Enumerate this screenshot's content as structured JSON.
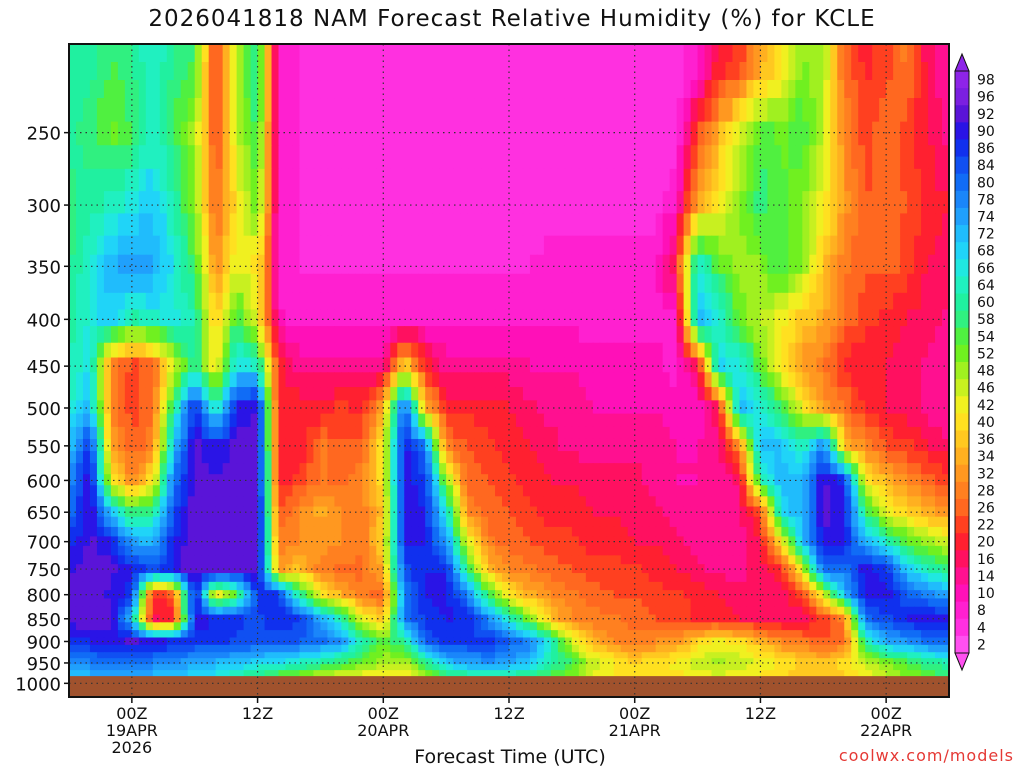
{
  "chart_data": {
    "type": "heatmap",
    "title": "2026041818 NAM Forecast Relative Humidity (%) for KCLE",
    "xlabel": "Forecast Time (UTC)",
    "credit": "coolwx.com/models",
    "x_ticks": [
      {
        "line1": "00Z",
        "line2": "19APR",
        "line3": "2026",
        "hours": 6
      },
      {
        "line1": "12Z",
        "line2": "",
        "line3": "",
        "hours": 18
      },
      {
        "line1": "00Z",
        "line2": "20APR",
        "line3": "",
        "hours": 30
      },
      {
        "line1": "12Z",
        "line2": "",
        "line3": "",
        "hours": 42
      },
      {
        "line1": "00Z",
        "line2": "21APR",
        "line3": "",
        "hours": 54
      },
      {
        "line1": "12Z",
        "line2": "",
        "line3": "",
        "hours": 66
      },
      {
        "line1": "00Z",
        "line2": "22APR",
        "line3": "",
        "hours": 78
      }
    ],
    "xlim_hours": [
      0,
      84
    ],
    "y_ticks": [
      "250",
      "300",
      "350",
      "400",
      "450",
      "500",
      "550",
      "600",
      "650",
      "700",
      "750",
      "800",
      "850",
      "900",
      "950",
      "1000"
    ],
    "ylim_hPa": [
      200,
      1035
    ],
    "y_scale": "log",
    "ground_hPa": 982,
    "grid": true,
    "colorbar": {
      "labels": [
        "98",
        "96",
        "92",
        "90",
        "86",
        "84",
        "80",
        "78",
        "74",
        "72",
        "68",
        "66",
        "64",
        "60",
        "58",
        "54",
        "52",
        "48",
        "46",
        "42",
        "40",
        "36",
        "34",
        "32",
        "28",
        "26",
        "22",
        "20",
        "16",
        "14",
        "10",
        "8",
        "4",
        "2"
      ],
      "colors": [
        "#8e24e8",
        "#7b1fe0",
        "#5a14d8",
        "#2a14e6",
        "#1030ee",
        "#1050f2",
        "#106cf6",
        "#1a86fa",
        "#20a0fc",
        "#20bcfc",
        "#20d4f8",
        "#20e8e0",
        "#20f0c0",
        "#20f0a0",
        "#30f080",
        "#50f040",
        "#70f020",
        "#a0f020",
        "#c8f020",
        "#f0f020",
        "#ffe020",
        "#ffc820",
        "#ffb020",
        "#ff9820",
        "#ff8020",
        "#ff6820",
        "#ff4020",
        "#ff2030",
        "#ff1060",
        "#ff1090",
        "#ff10b8",
        "#ff20d0",
        "#ff30e0",
        "#ff50f0"
      ]
    },
    "rows": [
      {
        "p": 210,
        "rh": [
          62,
          60,
          56,
          58,
          66,
          58,
          56,
          20,
          48,
          60,
          8,
          6,
          4,
          4,
          4,
          4,
          4,
          4,
          4,
          4,
          4,
          4,
          4,
          4,
          4,
          4,
          4,
          4,
          4,
          4,
          8,
          18,
          22,
          32,
          40,
          50,
          48,
          26,
          20,
          22,
          28,
          16,
          12
        ]
      },
      {
        "p": 250,
        "rh": [
          60,
          58,
          52,
          56,
          64,
          56,
          48,
          22,
          46,
          58,
          8,
          6,
          4,
          4,
          4,
          4,
          4,
          4,
          4,
          4,
          4,
          4,
          4,
          4,
          4,
          4,
          4,
          4,
          4,
          4,
          22,
          34,
          44,
          54,
          52,
          56,
          46,
          30,
          22,
          28,
          22,
          18,
          14
        ]
      },
      {
        "p": 300,
        "rh": [
          58,
          60,
          64,
          66,
          70,
          62,
          50,
          26,
          40,
          52,
          8,
          6,
          4,
          4,
          4,
          4,
          4,
          4,
          4,
          4,
          4,
          4,
          4,
          4,
          4,
          4,
          4,
          4,
          4,
          10,
          34,
          42,
          50,
          58,
          54,
          50,
          42,
          32,
          24,
          26,
          24,
          20,
          18
        ]
      },
      {
        "p": 350,
        "rh": [
          58,
          66,
          72,
          76,
          74,
          66,
          56,
          30,
          44,
          40,
          8,
          6,
          6,
          6,
          6,
          6,
          6,
          6,
          6,
          6,
          6,
          6,
          6,
          8,
          8,
          8,
          8,
          8,
          8,
          20,
          66,
          54,
          48,
          50,
          56,
          50,
          36,
          28,
          24,
          26,
          22,
          18,
          16
        ]
      },
      {
        "p": 400,
        "rh": [
          60,
          66,
          70,
          60,
          64,
          66,
          62,
          36,
          56,
          42,
          10,
          8,
          8,
          8,
          8,
          8,
          8,
          8,
          8,
          8,
          8,
          8,
          8,
          8,
          8,
          8,
          8,
          8,
          8,
          8,
          72,
          66,
          52,
          46,
          42,
          36,
          34,
          26,
          22,
          20,
          18,
          16,
          14
        ]
      },
      {
        "p": 450,
        "rh": [
          62,
          68,
          28,
          22,
          26,
          44,
          60,
          40,
          68,
          64,
          20,
          14,
          14,
          14,
          14,
          12,
          40,
          20,
          14,
          14,
          14,
          14,
          12,
          12,
          12,
          10,
          10,
          10,
          10,
          8,
          16,
          68,
          66,
          54,
          40,
          32,
          28,
          20,
          18,
          18,
          16,
          14,
          12
        ]
      },
      {
        "p": 500,
        "rh": [
          64,
          72,
          30,
          22,
          26,
          60,
          88,
          62,
          88,
          92,
          18,
          20,
          18,
          22,
          20,
          34,
          84,
          36,
          20,
          20,
          20,
          18,
          16,
          14,
          14,
          12,
          12,
          12,
          12,
          10,
          10,
          18,
          72,
          66,
          56,
          42,
          32,
          28,
          20,
          18,
          16,
          14,
          12
        ]
      },
      {
        "p": 550,
        "rh": [
          70,
          88,
          34,
          24,
          30,
          70,
          92,
          88,
          92,
          94,
          18,
          18,
          28,
          24,
          26,
          42,
          90,
          78,
          28,
          24,
          22,
          20,
          18,
          16,
          14,
          14,
          14,
          14,
          14,
          12,
          12,
          14,
          30,
          72,
          70,
          62,
          78,
          36,
          30,
          24,
          22,
          18,
          16
        ]
      },
      {
        "p": 600,
        "rh": [
          76,
          92,
          42,
          30,
          40,
          80,
          92,
          92,
          92,
          94,
          20,
          22,
          28,
          26,
          30,
          40,
          90,
          86,
          50,
          26,
          24,
          22,
          20,
          18,
          18,
          16,
          16,
          16,
          14,
          12,
          12,
          12,
          16,
          60,
          72,
          70,
          92,
          86,
          42,
          34,
          30,
          26,
          22
        ]
      },
      {
        "p": 650,
        "rh": [
          80,
          92,
          70,
          56,
          60,
          84,
          94,
          92,
          92,
          94,
          24,
          30,
          34,
          30,
          28,
          36,
          90,
          88,
          66,
          30,
          26,
          24,
          22,
          20,
          20,
          18,
          18,
          16,
          16,
          14,
          12,
          12,
          14,
          22,
          68,
          72,
          92,
          90,
          58,
          44,
          38,
          34,
          30
        ]
      },
      {
        "p": 700,
        "rh": [
          86,
          92,
          88,
          74,
          72,
          88,
          94,
          92,
          92,
          94,
          28,
          30,
          32,
          30,
          28,
          40,
          88,
          88,
          76,
          44,
          28,
          26,
          24,
          22,
          22,
          20,
          20,
          18,
          18,
          16,
          14,
          12,
          14,
          18,
          40,
          70,
          90,
          88,
          72,
          64,
          54,
          48,
          44
        ]
      },
      {
        "p": 750,
        "rh": [
          90,
          94,
          92,
          88,
          84,
          88,
          94,
          94,
          92,
          94,
          32,
          36,
          28,
          26,
          26,
          34,
          84,
          88,
          88,
          58,
          36,
          30,
          28,
          26,
          24,
          22,
          22,
          22,
          20,
          18,
          16,
          14,
          14,
          16,
          20,
          44,
          82,
          80,
          90,
          86,
          70,
          62,
          58
        ]
      },
      {
        "p": 800,
        "rh": [
          92,
          94,
          90,
          86,
          20,
          24,
          92,
          40,
          54,
          86,
          86,
          60,
          42,
          34,
          28,
          24,
          78,
          88,
          90,
          78,
          56,
          40,
          34,
          30,
          28,
          26,
          24,
          24,
          22,
          22,
          20,
          18,
          16,
          16,
          16,
          22,
          44,
          70,
          90,
          90,
          82,
          78,
          74
        ]
      },
      {
        "p": 850,
        "rh": [
          92,
          94,
          92,
          70,
          16,
          20,
          90,
          88,
          86,
          84,
          88,
          86,
          74,
          62,
          44,
          36,
          78,
          86,
          88,
          88,
          78,
          64,
          50,
          36,
          30,
          28,
          28,
          26,
          24,
          22,
          20,
          20,
          18,
          18,
          16,
          16,
          22,
          28,
          80,
          84,
          88,
          90,
          88
        ]
      },
      {
        "p": 900,
        "rh": [
          86,
          88,
          90,
          92,
          90,
          88,
          86,
          86,
          84,
          84,
          82,
          82,
          80,
          76,
          62,
          52,
          60,
          82,
          86,
          86,
          86,
          82,
          78,
          64,
          44,
          34,
          30,
          28,
          30,
          32,
          38,
          42,
          40,
          34,
          30,
          28,
          24,
          26,
          60,
          74,
          76,
          80,
          82
        ]
      },
      {
        "p": 950,
        "rh": [
          76,
          78,
          80,
          80,
          78,
          76,
          74,
          72,
          70,
          68,
          66,
          64,
          60,
          56,
          52,
          48,
          46,
          58,
          70,
          74,
          76,
          74,
          70,
          62,
          56,
          46,
          42,
          38,
          40,
          42,
          46,
          48,
          46,
          44,
          40,
          38,
          36,
          40,
          46,
          50,
          54,
          58,
          62
        ]
      },
      {
        "p": 985,
        "rh": [
          70,
          72,
          74,
          74,
          72,
          70,
          68,
          66,
          62,
          58,
          54,
          50,
          46,
          44,
          42,
          40,
          40,
          48,
          56,
          60,
          62,
          60,
          58,
          54,
          50,
          44,
          40,
          38,
          38,
          40,
          42,
          44,
          42,
          40,
          38,
          36,
          36,
          38,
          42,
          46,
          50,
          54,
          58
        ]
      }
    ]
  }
}
